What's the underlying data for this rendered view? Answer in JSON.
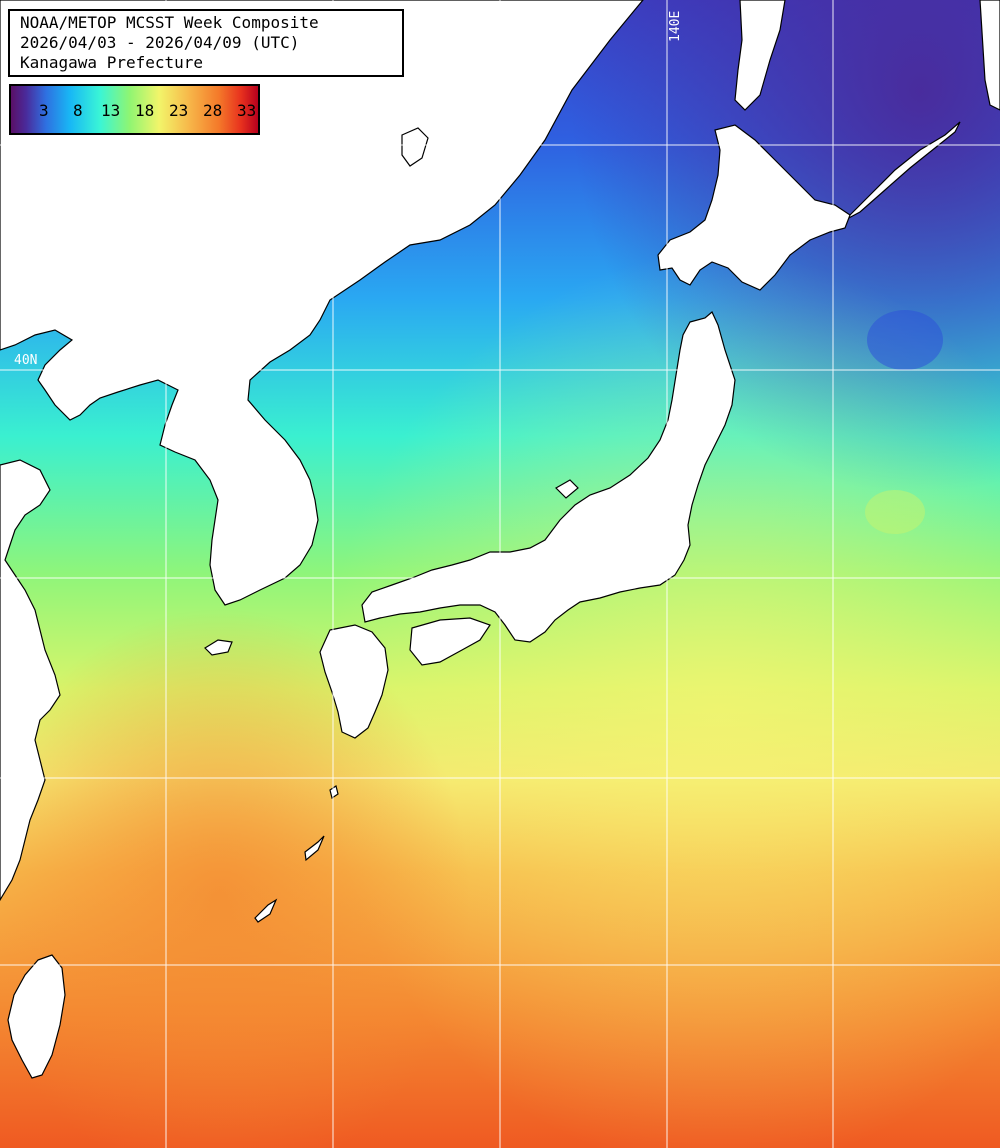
{
  "title": {
    "line1": "NOAA/METOP MCSST Week Composite",
    "line2": "2026/04/03 - 2026/04/09 (UTC)",
    "line3": "Kanagawa Prefecture"
  },
  "legend": {
    "ticks": [
      "3",
      "8",
      "13",
      "18",
      "23",
      "28",
      "33"
    ],
    "colors": {
      "cold": "#5a1066",
      "cool": "#18b8f5",
      "mid": "#8ff572",
      "warm": "#f2f56a",
      "hot": "#f47a2a",
      "hottest": "#b8001e"
    }
  },
  "grid": {
    "lon_label": "140E",
    "lat_label": "40N"
  },
  "map": {
    "land_color": "#ffffff",
    "coast_color": "#000000",
    "grid_color": "#ffffff"
  }
}
